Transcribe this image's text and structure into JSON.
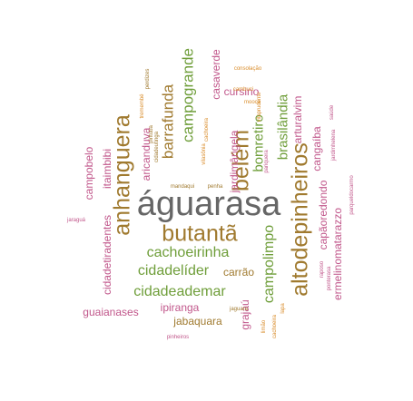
{
  "colors": {
    "gray": "#666666",
    "brown": "#a07a2f",
    "green": "#6f9e3a",
    "pink": "#c1578b",
    "orange": "#d98c2a"
  },
  "words": [
    {
      "text": "águarasa",
      "color": "gray"
    },
    {
      "text": "altodepinheiros",
      "color": "brown"
    },
    {
      "text": "anhanguera",
      "color": "brown"
    },
    {
      "text": "butantã",
      "color": "brown"
    },
    {
      "text": "belém",
      "color": "brown"
    },
    {
      "text": "campogrande",
      "color": "green"
    },
    {
      "text": "barrafunda",
      "color": "brown"
    },
    {
      "text": "cidadeademar",
      "color": "green"
    },
    {
      "text": "cidadelíder",
      "color": "green"
    },
    {
      "text": "cachoeirinha",
      "color": "green"
    },
    {
      "text": "campolimpo",
      "color": "green"
    },
    {
      "text": "brasilândia",
      "color": "green"
    },
    {
      "text": "bomretiro",
      "color": "green"
    },
    {
      "text": "jabaquara",
      "color": "brown"
    },
    {
      "text": "guaianases",
      "color": "pink"
    },
    {
      "text": "ipiranga",
      "color": "pink"
    },
    {
      "text": "carrão",
      "color": "brown"
    },
    {
      "text": "cursino",
      "color": "pink"
    },
    {
      "text": "casaverde",
      "color": "pink"
    },
    {
      "text": "aricanduva",
      "color": "pink"
    },
    {
      "text": "jardimângela",
      "color": "pink"
    },
    {
      "text": "capãoredondo",
      "color": "pink"
    },
    {
      "text": "ermelinomatarazzo",
      "color": "pink"
    },
    {
      "text": "cangaíba",
      "color": "pink"
    },
    {
      "text": "arturalvim",
      "color": "pink"
    },
    {
      "text": "itaimbibi",
      "color": "pink"
    },
    {
      "text": "cidadetiradentes",
      "color": "pink"
    },
    {
      "text": "campobelo",
      "color": "pink"
    },
    {
      "text": "grajaú",
      "color": "pink"
    },
    {
      "text": "consolação",
      "color": "orange"
    },
    {
      "text": "pinheiros",
      "color": "pink"
    },
    {
      "text": "jaraguá",
      "color": "pink"
    },
    {
      "text": "mandaqui",
      "color": "brown"
    },
    {
      "text": "penha",
      "color": "brown"
    },
    {
      "text": "jaguara",
      "color": "brown"
    },
    {
      "text": "cambuci",
      "color": "orange"
    },
    {
      "text": "mooca",
      "color": "orange"
    },
    {
      "text": "perdizes",
      "color": "brown"
    },
    {
      "text": "vilasônia",
      "color": "orange"
    },
    {
      "text": "parqueldocarmo",
      "color": "pink"
    },
    {
      "text": "pirituba",
      "color": "brown"
    },
    {
      "text": "cidadeutinga",
      "color": "brown"
    },
    {
      "text": "tremembé",
      "color": "orange"
    },
    {
      "text": "cachoeira",
      "color": "orange"
    },
    {
      "text": "limão",
      "color": "orange"
    },
    {
      "text": "raposo",
      "color": "pink"
    },
    {
      "text": "ponterasa",
      "color": "pink"
    },
    {
      "text": "pariquera",
      "color": "pink"
    },
    {
      "text": "saúde",
      "color": "pink"
    },
    {
      "text": "cachoeira",
      "color": "orange"
    },
    {
      "text": "jardimhelena",
      "color": "pink"
    },
    {
      "text": "vilaprudente",
      "color": "orange"
    },
    {
      "text": "lapa",
      "color": "orange"
    }
  ]
}
